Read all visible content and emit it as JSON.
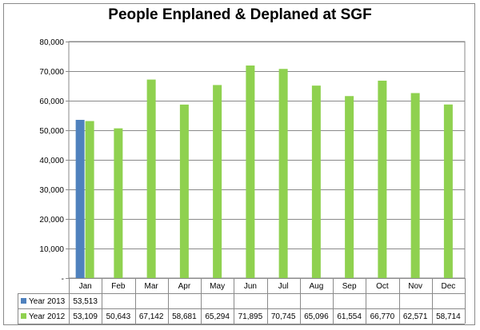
{
  "chart_data": {
    "type": "bar",
    "title": "People Enplaned  & Deplaned at SGF",
    "categories": [
      "Jan",
      "Feb",
      "Mar",
      "Apr",
      "May",
      "Jun",
      "Jul",
      "Aug",
      "Sep",
      "Oct",
      "Nov",
      "Dec"
    ],
    "series": [
      {
        "name": "Year 2013",
        "color": "#4f81bd",
        "values": [
          53513,
          null,
          null,
          null,
          null,
          null,
          null,
          null,
          null,
          null,
          null,
          null
        ]
      },
      {
        "name": "Year 2012",
        "color": "#8fd14f",
        "values": [
          53109,
          50643,
          67142,
          58681,
          65294,
          71895,
          70745,
          65096,
          61554,
          66770,
          62571,
          58714
        ]
      }
    ],
    "table_values": [
      [
        "53,513",
        "",
        "",
        "",
        "",
        "",
        "",
        "",
        "",
        "",
        "",
        ""
      ],
      [
        "53,109",
        "50,643",
        "67,142",
        "58,681",
        "65,294",
        "71,895",
        "70,745",
        "65,096",
        "61,554",
        "66,770",
        "62,571",
        "58,714"
      ]
    ],
    "yticks": [
      0,
      10000,
      20000,
      30000,
      40000,
      50000,
      60000,
      70000,
      80000
    ],
    "ytick_labels": [
      "-",
      "10,000",
      "20,000",
      "30,000",
      "40,000",
      "50,000",
      "60,000",
      "70,000",
      "80,000"
    ],
    "ylim": [
      0,
      80000
    ],
    "xlabel": "",
    "ylabel": "",
    "grid": true,
    "legend": "data-table"
  }
}
